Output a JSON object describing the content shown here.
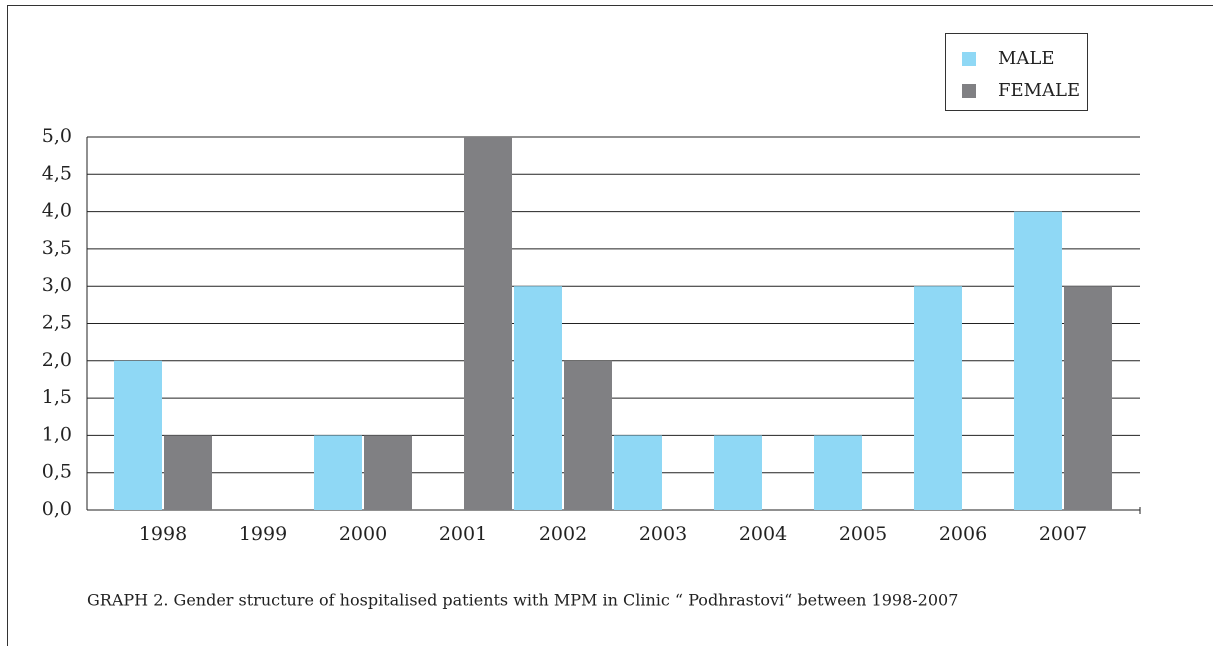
{
  "chart_data": {
    "type": "bar",
    "caption": "GRAPH 2. Gender structure of  hospitalised patients with  MPM in  Clinic  “ Podhrastovi“  between 1998-2007",
    "categories": [
      "1998",
      "1999",
      "2000",
      "2001",
      "2002",
      "2003",
      "2004",
      "2005",
      "2006",
      "2007"
    ],
    "series": [
      {
        "name": "MALE",
        "color": "#8fd8f5",
        "values": [
          2,
          0,
          1,
          0,
          3,
          1,
          1,
          1,
          3,
          4
        ]
      },
      {
        "name": "FEMALE",
        "color": "#808083",
        "values": [
          1,
          0,
          1,
          5,
          2,
          0,
          0,
          0,
          0,
          3
        ]
      }
    ],
    "ylim": [
      0,
      5
    ],
    "yticks": [
      {
        "value": 0,
        "label": "0,0"
      },
      {
        "value": 0.5,
        "label": "0,5"
      },
      {
        "value": 1,
        "label": "1,0"
      },
      {
        "value": 1.5,
        "label": "1,5"
      },
      {
        "value": 2,
        "label": "2,0"
      },
      {
        "value": 2.5,
        "label": "2,5"
      },
      {
        "value": 3,
        "label": "3,0"
      },
      {
        "value": 3.5,
        "label": "3,5"
      },
      {
        "value": 4,
        "label": "4,0"
      },
      {
        "value": 4.5,
        "label": "4,5"
      },
      {
        "value": 5,
        "label": "5,0"
      }
    ],
    "grid": true,
    "legend": "top-right"
  }
}
